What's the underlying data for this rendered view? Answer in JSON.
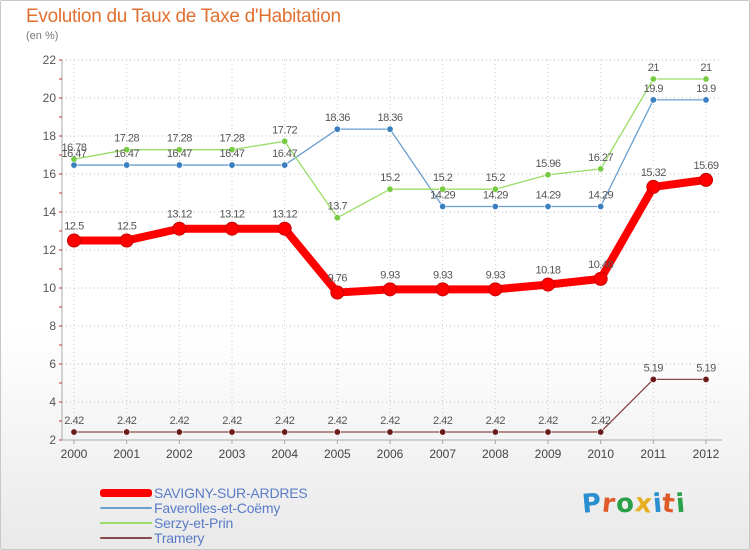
{
  "title": "Evolution du Taux de Taxe d'Habitation",
  "subtitle": "(en %)",
  "logo": {
    "text": "Proxiti",
    "letter_colors": [
      "#2a8fd0",
      "#e05a2a",
      "#2aa048",
      "#e8b020",
      "#2a8fd0",
      "#e05a2a",
      "#2aa048"
    ]
  },
  "chart_data": {
    "type": "line",
    "title": "Evolution du Taux de Taxe d'Habitation",
    "ylabel": "(en %)",
    "xlabel": "",
    "x": [
      "2000",
      "2001",
      "2002",
      "2003",
      "2004",
      "2005",
      "2006",
      "2007",
      "2008",
      "2009",
      "2010",
      "2011",
      "2012"
    ],
    "ylim": [
      2,
      22
    ],
    "yticks": [
      "2",
      "4",
      "6",
      "8",
      "10",
      "12",
      "14",
      "16",
      "18",
      "20",
      "22"
    ],
    "grid": true,
    "legend_position": "bottom-left",
    "series": [
      {
        "name": "SAVIGNY-SUR-ARDRES",
        "color": "#ff0000",
        "values": [
          12.5,
          12.5,
          13.12,
          13.12,
          13.12,
          9.76,
          9.93,
          9.93,
          9.93,
          10.18,
          10.48,
          15.32,
          15.69
        ],
        "labels": [
          "12.5",
          "12.5",
          "13.12",
          "13.12",
          "13.12",
          "9.76",
          "9.93",
          "9.93",
          "9.93",
          "10.18",
          "10.48",
          "15.32",
          "15.69"
        ]
      },
      {
        "name": "Faverolles-et-Coëmy",
        "color": "#6a9fd0",
        "marker": "#3a80c0",
        "values": [
          16.47,
          16.47,
          16.47,
          16.47,
          16.47,
          18.36,
          18.36,
          14.29,
          14.29,
          14.29,
          14.29,
          19.9,
          19.9
        ],
        "labels": [
          "16.47",
          "16.47",
          "16.47",
          "16.47",
          "16.47",
          "18.36",
          "18.36",
          "14.29",
          "14.29",
          "14.29",
          "14.29",
          "19.9",
          "19.9"
        ]
      },
      {
        "name": "Serzy-et-Prin",
        "color": "#99dd66",
        "marker": "#77cc44",
        "values": [
          16.78,
          17.28,
          17.28,
          17.28,
          17.72,
          13.7,
          15.2,
          15.2,
          15.2,
          15.96,
          16.27,
          21,
          21
        ],
        "labels": [
          "16.78",
          "17.28",
          "17.28",
          "17.28",
          "17.72",
          "13.7",
          "15.2",
          "15.2",
          "15.2",
          "15.96",
          "16.27",
          "21",
          "21"
        ]
      },
      {
        "name": "Tramery",
        "color": "#8a4a4a",
        "marker": "#6a1a1a",
        "values": [
          2.42,
          2.42,
          2.42,
          2.42,
          2.42,
          2.42,
          2.42,
          2.42,
          2.42,
          2.42,
          2.42,
          5.19,
          5.19
        ],
        "labels": [
          "2.42",
          "2.42",
          "2.42",
          "2.42",
          "2.42",
          "2.42",
          "2.42",
          "2.42",
          "2.42",
          "2.42",
          "2.42",
          "5.19",
          "5.19"
        ]
      }
    ]
  }
}
